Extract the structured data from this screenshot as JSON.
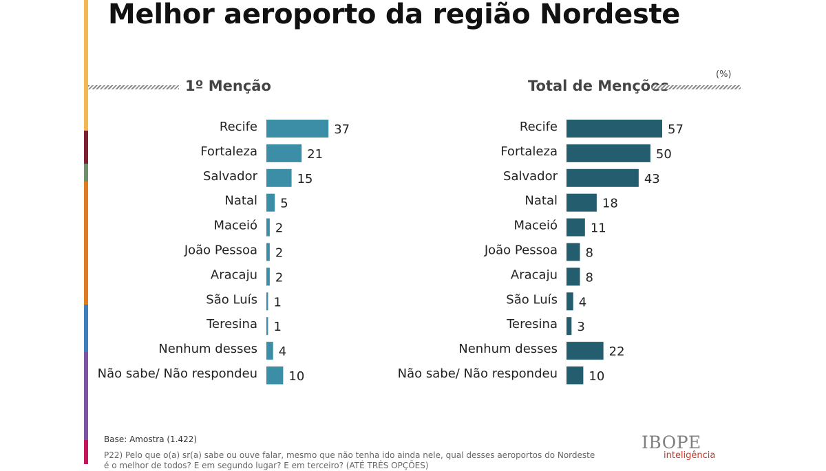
{
  "title": "Melhor aeroporto da região Nordeste",
  "unit_label": "(%)",
  "panels": [
    {
      "heading": "1º Menção"
    },
    {
      "heading": "Total de Menções"
    }
  ],
  "colors": {
    "first_mention": "#3b8ea5",
    "total_mentions": "#245e6e",
    "side_strip": [
      "#f2b94e",
      "#7e1f33",
      "#6f8f6a",
      "#e07b1f",
      "#3f7fba",
      "#7e55a3",
      "#c2185b"
    ]
  },
  "chart_data": [
    {
      "type": "bar",
      "orientation": "horizontal",
      "title": "1º Menção",
      "unit": "%",
      "categories": [
        "Recife",
        "Fortaleza",
        "Salvador",
        "Natal",
        "Maceió",
        "João Pessoa",
        "Aracaju",
        "São Luís",
        "Teresina",
        "Nenhum desses",
        "Não sabe/ Não respondeu"
      ],
      "values": [
        37,
        21,
        15,
        5,
        2,
        2,
        2,
        1,
        1,
        4,
        10
      ],
      "xlim": [
        0,
        57
      ]
    },
    {
      "type": "bar",
      "orientation": "horizontal",
      "title": "Total de Menções",
      "unit": "%",
      "categories": [
        "Recife",
        "Fortaleza",
        "Salvador",
        "Natal",
        "Maceió",
        "João Pessoa",
        "Aracaju",
        "São Luís",
        "Teresina",
        "Nenhum desses",
        "Não sabe/ Não respondeu"
      ],
      "values": [
        57,
        50,
        43,
        18,
        11,
        8,
        8,
        4,
        3,
        22,
        10
      ],
      "xlim": [
        0,
        57
      ]
    }
  ],
  "footer": {
    "base": "Base: Amostra (1.422)",
    "question": "P22) Pelo que o(a) sr(a) sabe ou ouve falar, mesmo que não tenha ido ainda nele, qual desses aeroportos do Nordeste é o melhor de todos? E em segundo lugar? E em terceiro? (ATÉ TRÊS OPÇÕES)"
  },
  "logo": {
    "main": "IBOPE",
    "sub": "inteligência"
  }
}
